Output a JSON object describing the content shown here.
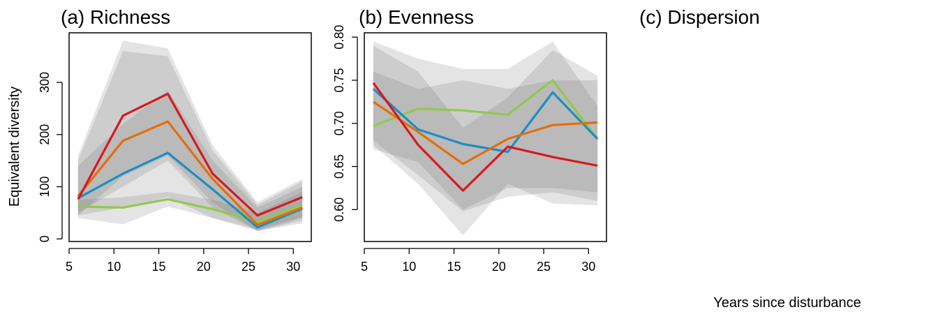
{
  "figure": {
    "ylabel": "Equivalent diversity",
    "xlabel": "Years since disturbance"
  },
  "chart_data": [
    {
      "type": "line",
      "title": "(a) Richness",
      "xlabel": "",
      "ylabel": "Equivalent diversity",
      "xlim": [
        5,
        32
      ],
      "ylim": [
        -5,
        395
      ],
      "xticks": [
        "5",
        "10",
        "15",
        "20",
        "25",
        "30"
      ],
      "yticks": [
        "0",
        "100",
        "200",
        "300"
      ],
      "x": [
        6,
        11,
        16,
        21,
        26,
        31
      ],
      "series": [
        {
          "color": "#92c84e",
          "values": [
            62,
            60,
            76,
            57,
            33,
            65
          ]
        },
        {
          "color": "#1a8fc4",
          "values": [
            78,
            125,
            165,
            95,
            22,
            58
          ]
        },
        {
          "color": "#e46d0a",
          "values": [
            82,
            188,
            225,
            115,
            27,
            60
          ]
        },
        {
          "color": "#d7191c",
          "values": [
            76,
            236,
            278,
            125,
            45,
            80
          ]
        }
      ],
      "bands": [
        {
          "lower": [
            40,
            28,
            62,
            40,
            18,
            42
          ],
          "upper": [
            75,
            80,
            90,
            75,
            50,
            90
          ]
        },
        {
          "lower": [
            45,
            60,
            80,
            40,
            15,
            30
          ],
          "upper": [
            140,
            220,
            285,
            150,
            60,
            100
          ]
        },
        {
          "lower": [
            50,
            100,
            150,
            60,
            15,
            35
          ],
          "upper": [
            150,
            360,
            350,
            170,
            65,
            110
          ]
        },
        {
          "lower": [
            45,
            120,
            160,
            70,
            15,
            40
          ],
          "upper": [
            160,
            380,
            365,
            180,
            70,
            115
          ]
        }
      ]
    },
    {
      "type": "line",
      "title": "(b) Evenness",
      "xlabel": "",
      "ylabel": "",
      "xlim": [
        5,
        32
      ],
      "ylim": [
        0.563,
        0.805
      ],
      "xticks": [
        "5",
        "10",
        "15",
        "20",
        "25",
        "30"
      ],
      "yticks": [
        "0.60",
        "0.65",
        "0.70",
        "0.75",
        "0.80"
      ],
      "x": [
        6,
        11,
        16,
        21,
        26,
        31
      ],
      "series": [
        {
          "color": "#92c84e",
          "values": [
            0.697,
            0.717,
            0.715,
            0.71,
            0.75,
            0.682
          ]
        },
        {
          "color": "#1a8fc4",
          "values": [
            0.74,
            0.693,
            0.676,
            0.667,
            0.736,
            0.682
          ]
        },
        {
          "color": "#e46d0a",
          "values": [
            0.725,
            0.69,
            0.653,
            0.682,
            0.698,
            0.701
          ]
        },
        {
          "color": "#d7191c",
          "values": [
            0.747,
            0.675,
            0.622,
            0.673,
            0.661,
            0.651
          ]
        }
      ],
      "bands": [
        {
          "lower": [
            0.67,
            0.655,
            0.6,
            0.625,
            0.625,
            0.62
          ],
          "upper": [
            0.76,
            0.74,
            0.75,
            0.74,
            0.75,
            0.75
          ]
        },
        {
          "lower": [
            0.68,
            0.64,
            0.598,
            0.615,
            0.62,
            0.61
          ],
          "upper": [
            0.795,
            0.775,
            0.763,
            0.763,
            0.795,
            0.72
          ]
        },
        {
          "lower": [
            0.675,
            0.63,
            0.57,
            0.63,
            0.607,
            0.605
          ],
          "upper": [
            0.79,
            0.76,
            0.695,
            0.73,
            0.785,
            0.755
          ]
        }
      ]
    },
    {
      "type": "line",
      "title": "(c) Dispersion",
      "xlabel": "Years since disturbance",
      "ylabel": "",
      "series": []
    }
  ]
}
